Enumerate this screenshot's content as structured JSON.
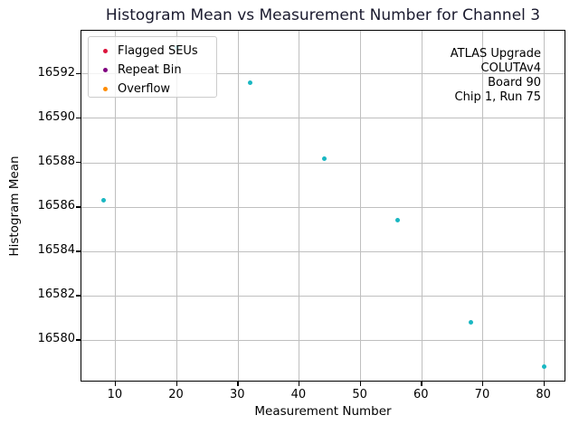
{
  "chart_data": {
    "type": "scatter",
    "title": "Histogram Mean vs Measurement Number for Channel 3",
    "xlabel": "Measurement Number",
    "ylabel": "Histogram Mean",
    "xlim": [
      4.4,
      83.6
    ],
    "ylim": [
      16578.1,
      16593.95
    ],
    "xticks": [
      10,
      20,
      30,
      40,
      50,
      60,
      70,
      80
    ],
    "yticks": [
      16580,
      16582,
      16584,
      16586,
      16588,
      16590,
      16592
    ],
    "grid": true,
    "series": [
      {
        "name": "histogram-mean-points",
        "marker": "dot",
        "color": "#1ab7c2",
        "points": [
          [
            8,
            16586.3
          ],
          [
            20,
            16593.2
          ],
          [
            32,
            16591.6
          ],
          [
            44,
            16588.2
          ],
          [
            56,
            16585.4
          ],
          [
            68,
            16580.8
          ],
          [
            80,
            16578.8
          ]
        ]
      }
    ],
    "legend": {
      "position": "upper-left",
      "entries": [
        {
          "label": "Flagged SEUs",
          "color": "#dc143c"
        },
        {
          "label": "Repeat Bin",
          "color": "#800080"
        },
        {
          "label": "Overflow",
          "color": "#ff8c00"
        }
      ]
    },
    "annotation": {
      "align": "right",
      "lines": [
        "ATLAS Upgrade",
        "COLUTAv4",
        "Board 90",
        "Chip 1, Run 75"
      ]
    },
    "style": {
      "grid_color": "#bfbfbf",
      "spine_color": "#000000",
      "title_color": "#1a1a2e",
      "background": "#ffffff"
    }
  }
}
